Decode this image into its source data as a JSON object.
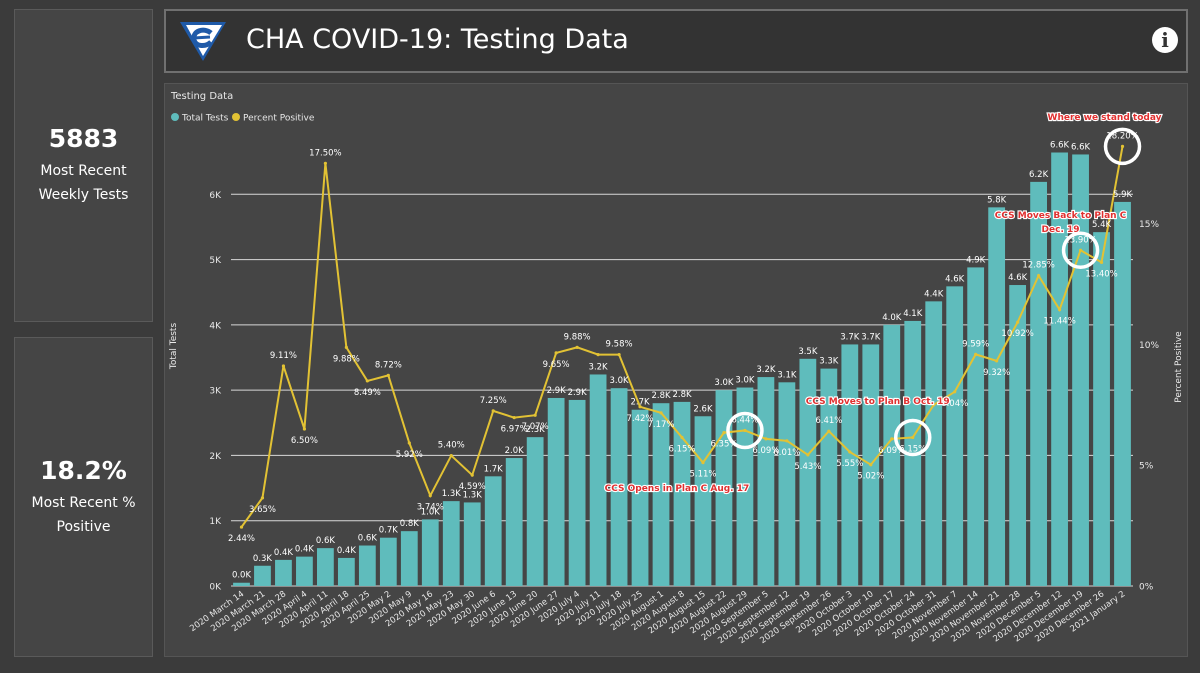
{
  "header": {
    "title": "CHA COVID-19: Testing Data",
    "info_glyph": "i"
  },
  "kpis": [
    {
      "value": "5883",
      "label": "Most Recent Weekly Tests"
    },
    {
      "value": "18.2%",
      "label": "Most Recent % Positive"
    }
  ],
  "colors": {
    "bars": "#5fbcbc",
    "line": "#e2c234",
    "annotation": "#e03030",
    "grid": "#d8d8d8"
  },
  "chart_data": {
    "type": "bar",
    "title": "Testing Data",
    "legend": [
      "Total Tests",
      "Percent Positive"
    ],
    "ylabel": "Total Tests",
    "y2label": "Percent Positive",
    "ylim": [
      0,
      7000
    ],
    "y2lim": [
      0,
      18.92
    ],
    "yticks": [
      "0K",
      "1K",
      "2K",
      "3K",
      "4K",
      "5K",
      "6K"
    ],
    "y2ticks": [
      "0%",
      "5%",
      "10%",
      "15%"
    ],
    "categories": [
      "2020 March 14",
      "2020 March 21",
      "2020 March 28",
      "2020 April 4",
      "2020 April 11",
      "2020 April 18",
      "2020 April 25",
      "2020 May 2",
      "2020 May 9",
      "2020 May 16",
      "2020 May 23",
      "2020 May 30",
      "2020 June 6",
      "2020 June 13",
      "2020 June 20",
      "2020 June 27",
      "2020 July 4",
      "2020 July 11",
      "2020 July 18",
      "2020 July 25",
      "2020 August 1",
      "2020 August 8",
      "2020 August 15",
      "2020 August 22",
      "2020 August 29",
      "2020 September 5",
      "2020 September 12",
      "2020 September 19",
      "2020 September 26",
      "2020 October 3",
      "2020 October 10",
      "2020 October 17",
      "2020 October 24",
      "2020 October 31",
      "2020 November 7",
      "2020 November 14",
      "2020 November 21",
      "2020 November 28",
      "2020 December 5",
      "2020 December 12",
      "2020 December 19",
      "2020 December 26",
      "2021 January 2"
    ],
    "tests": [
      50,
      310,
      400,
      450,
      580,
      430,
      620,
      740,
      840,
      1020,
      1300,
      1280,
      1680,
      1960,
      2280,
      2880,
      2850,
      3240,
      3030,
      2700,
      2800,
      2820,
      2600,
      3000,
      3040,
      3200,
      3120,
      3480,
      3330,
      3700,
      3700,
      4000,
      4060,
      4360,
      4590,
      4880,
      5800,
      4610,
      6190,
      6640,
      6610,
      5420,
      5883
    ],
    "tests_labels": [
      "0.0K",
      "0.3K",
      "0.4K",
      "0.4K",
      "0.6K",
      "0.4K",
      "0.6K",
      "0.7K",
      "0.8K",
      "1.0K",
      "1.3K",
      "1.3K",
      "1.7K",
      "2.0K",
      "2.3K",
      "2.9K",
      "2.9K",
      "3.2K",
      "3.0K",
      "2.7K",
      "2.8K",
      "2.8K",
      "2.6K",
      "3.0K",
      "3.0K",
      "3.2K",
      "3.1K",
      "3.5K",
      "3.3K",
      "3.7K",
      "3.7K",
      "4.0K",
      "4.1K",
      "4.4K",
      "4.6K",
      "4.9K",
      "5.8K",
      "4.6K",
      "6.2K",
      "6.6K",
      "6.6K",
      "5.4K",
      "5.9K"
    ],
    "percent_positive": [
      2.44,
      3.65,
      9.11,
      6.5,
      17.5,
      9.88,
      8.49,
      8.72,
      5.92,
      3.74,
      5.4,
      4.59,
      7.25,
      6.97,
      7.07,
      9.65,
      9.88,
      9.58,
      9.58,
      7.42,
      7.17,
      6.15,
      5.11,
      6.35,
      6.44,
      6.09,
      6.01,
      5.43,
      6.41,
      5.55,
      5.02,
      6.09,
      6.15,
      7.5,
      8.04,
      9.59,
      9.32,
      10.92,
      12.85,
      11.44,
      13.9,
      13.4,
      18.2
    ],
    "percent_labels": [
      "2.44%",
      "3.65%",
      "9.11%",
      "6.50%",
      "17.50%",
      "9.88%",
      "8.49%",
      "8.72%",
      "5.92%",
      "3.74%",
      "5.40%",
      "4.59%",
      "7.25%",
      "6.97%",
      "7.07%",
      "9.65%",
      "9.88%",
      "",
      "9.58%",
      "7.42%",
      "7.17%",
      "6.15%",
      "5.11%",
      "6.35%",
      "6.44%",
      "6.09%",
      "6.01%",
      "5.43%",
      "6.41%",
      "5.55%",
      "5.02%",
      "6.09%",
      "6.15%",
      "",
      "8.04%",
      "9.59%",
      "9.32%",
      "10.92%",
      "12.85%",
      "11.44%",
      "13.90%",
      "13.40%",
      "18.20%"
    ],
    "annotations": [
      {
        "text": "CCS Opens in Plan C Aug. 17",
        "at_index": 24
      },
      {
        "text": "CCS Moves to Plan B Oct. 19",
        "at_index": 32
      },
      {
        "text": "CCS Moves Back to Plan C Dec. 19",
        "at_index": 40
      },
      {
        "text": "Where we stand today",
        "at_index": 42
      }
    ]
  }
}
